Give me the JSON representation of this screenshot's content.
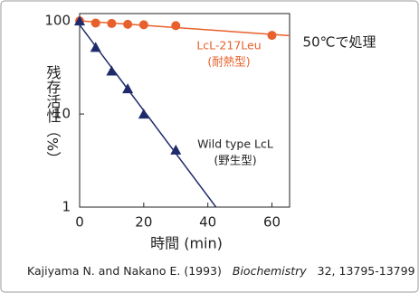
{
  "chart_data": {
    "type": "line",
    "yscale": "log",
    "xlabel": "時間 (min)",
    "ylabel": "残存活性（%）",
    "xlim": [
      0,
      65.5
    ],
    "xticks": [
      0,
      20,
      40,
      60
    ],
    "ylim": [
      1,
      120
    ],
    "yticks": [
      1,
      10,
      100
    ],
    "series": [
      {
        "name": "LcL-217Leu",
        "note": "(耐熱型)",
        "color": "#e8602c",
        "marker": "circle",
        "x": [
          0,
          5,
          10,
          15,
          20,
          30,
          60
        ],
        "values": [
          100,
          95,
          94,
          92,
          91,
          89,
          70
        ]
      },
      {
        "name": "Wild type LcL",
        "note": "(野生型)",
        "color": "#1f2a6b",
        "marker": "triangle",
        "x": [
          0,
          5,
          10,
          15,
          20,
          30
        ],
        "values": [
          100,
          52,
          29,
          18.7,
          10,
          4.1
        ]
      }
    ],
    "annotation": "50℃で処理",
    "citation": {
      "authors": "Kajiyama N. and Nakano E. (1993)",
      "journal": "Biochemistry",
      "pages": "32, 13795-13799"
    }
  }
}
